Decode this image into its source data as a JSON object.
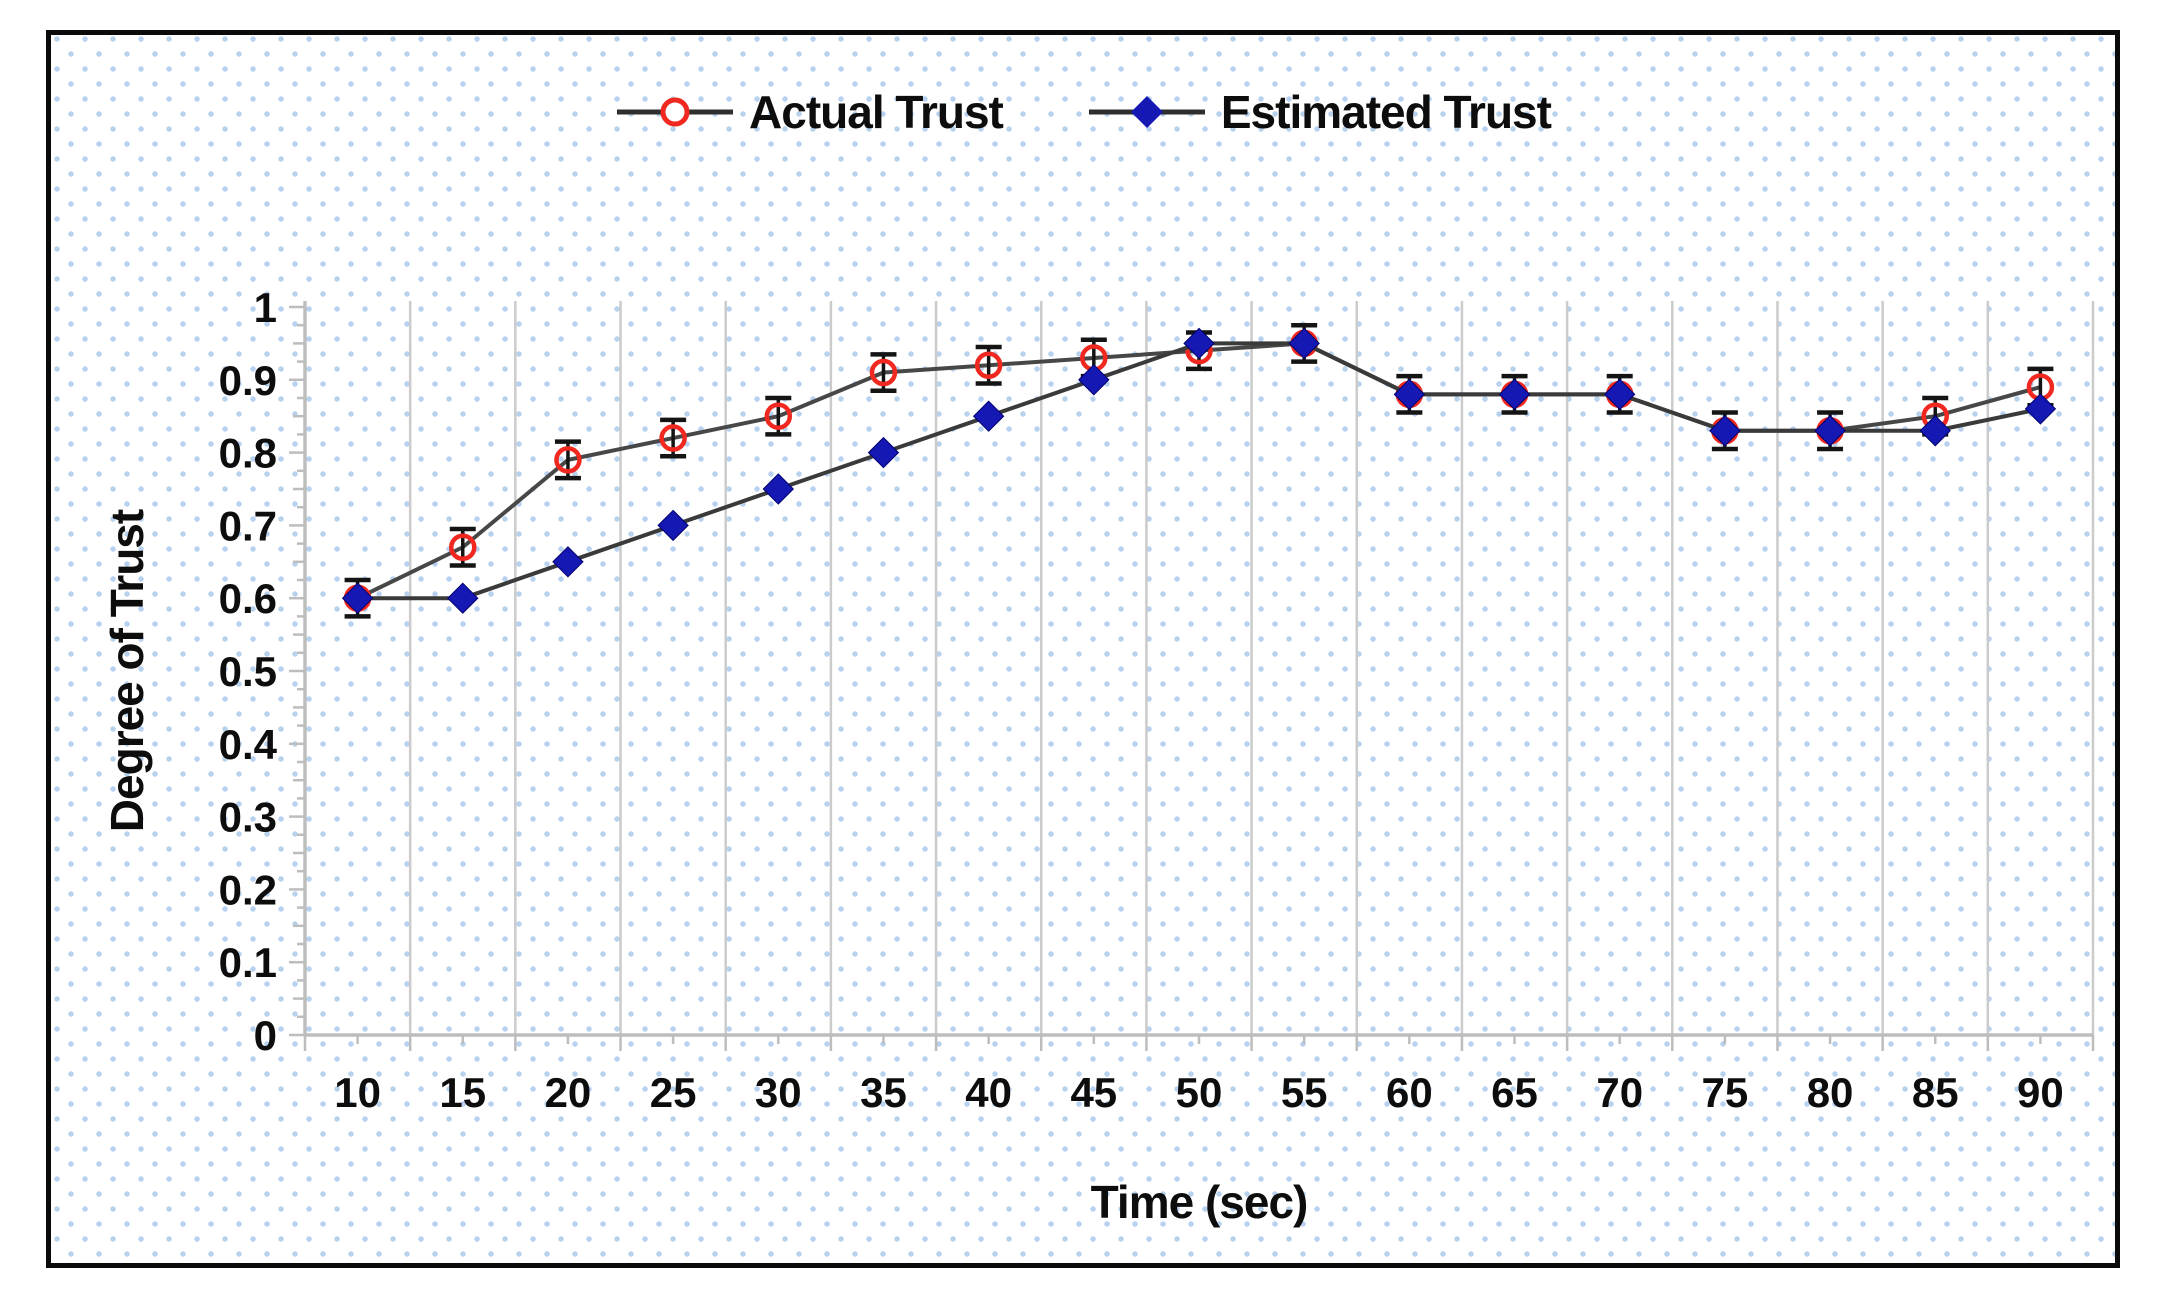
{
  "figure": {
    "background": "#ffffff",
    "frame_border_color": "#0a0a0a",
    "dot_pattern_color": "#b7d1ee"
  },
  "legend": {
    "items": [
      {
        "label": "Actual Trust",
        "marker": "open-circle",
        "marker_color": "#f02820",
        "line_color": "#2e2e2e"
      },
      {
        "label": "Estimated Trust",
        "marker": "diamond",
        "marker_color": "#1518b2",
        "line_color": "#2e2e2e"
      }
    ]
  },
  "chart_data": {
    "type": "line",
    "title": "",
    "xlabel": "Time (sec)",
    "ylabel": "Degree of Trust",
    "x": [
      10,
      15,
      20,
      25,
      30,
      35,
      40,
      45,
      50,
      55,
      60,
      65,
      70,
      75,
      80,
      85,
      90
    ],
    "ylim": [
      0,
      1
    ],
    "ytick_step": 0.1,
    "ytick_labels": [
      "0",
      "0.1",
      "0.2",
      "0.3",
      "0.4",
      "0.5",
      "0.6",
      "0.7",
      "0.8",
      "0.9",
      "1"
    ],
    "grid": "vertical-only",
    "legend_position": "top-center",
    "axis_color": "#bdbdbd",
    "gridline_color": "#cbcbcb",
    "error_bar_color": "#141414",
    "series": [
      {
        "name": "Actual Trust",
        "marker": "open-circle",
        "marker_color": "#f02820",
        "line_color": "#474747",
        "error_bar": 0.025,
        "values": [
          0.6,
          0.67,
          0.79,
          0.82,
          0.85,
          0.91,
          0.92,
          0.93,
          0.94,
          0.95,
          0.88,
          0.88,
          0.88,
          0.83,
          0.83,
          0.85,
          0.89
        ]
      },
      {
        "name": "Estimated Trust",
        "marker": "diamond",
        "marker_color": "#1518b2",
        "line_color": "#3a3a3a",
        "error_bar": null,
        "values": [
          0.6,
          0.6,
          0.65,
          0.7,
          0.75,
          0.8,
          0.85,
          0.9,
          0.95,
          0.95,
          0.88,
          0.88,
          0.88,
          0.83,
          0.83,
          0.83,
          0.86
        ]
      }
    ]
  }
}
